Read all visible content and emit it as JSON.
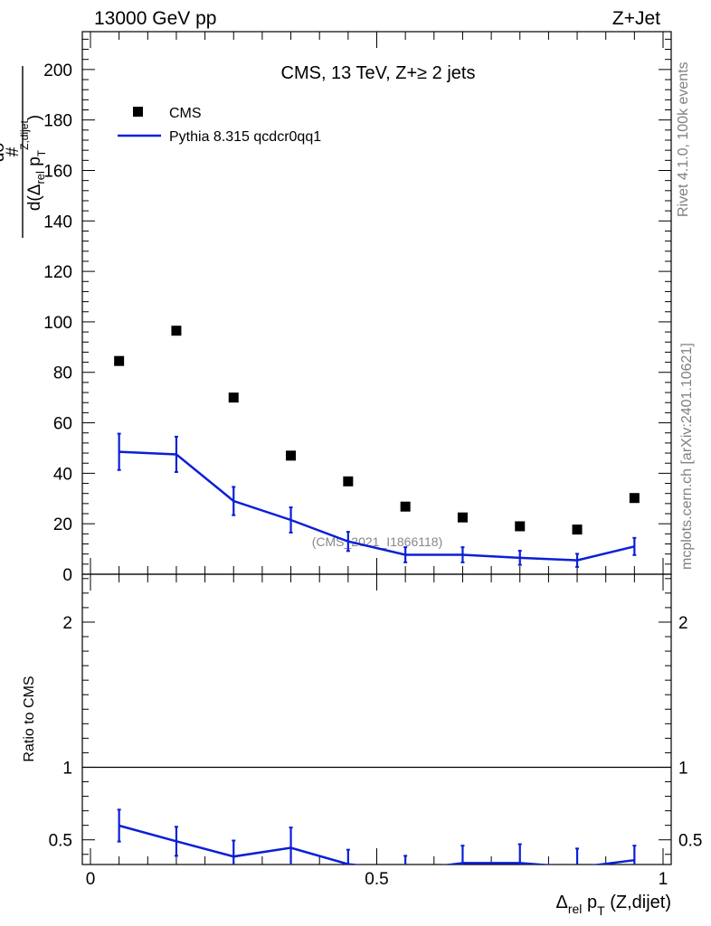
{
  "header": {
    "energy_label": "13000 GeV pp",
    "process_label": "Z+Jet"
  },
  "side_labels": {
    "rivet": "Rivet 4.1.0,  100k events",
    "mcplots": "mcplots.cern.ch [arXiv:2401.10621]"
  },
  "colors": {
    "data": "#000000",
    "mc": "#0b1fd6",
    "watermark": "#888888",
    "side_text": "#808080"
  },
  "chart_data": [
    {
      "type": "scatter+line",
      "title": "CMS, 13 TeV, Z+≥ 2 jets",
      "watermark": "(CMS_2021_I1866118)",
      "ylabel": {
        "hash": "#",
        "numerator": "dσ",
        "den_d": "d(",
        "den_delta": "Δ",
        "den_rel": "rel",
        "den_p": " p",
        "den_t": "T",
        "den_sup": "Z,dijet",
        "den_close": ")"
      },
      "xlim": [
        0,
        1
      ],
      "ylim": [
        0,
        215
      ],
      "yticks": [
        0,
        20,
        40,
        60,
        80,
        100,
        120,
        140,
        160,
        180,
        200
      ],
      "legend": {
        "position": "top-left",
        "entries": [
          "CMS",
          "Pythia 8.315 qcdcr0qq1"
        ]
      },
      "series": [
        {
          "name": "CMS",
          "style": "markers",
          "x": [
            0.05,
            0.15,
            0.25,
            0.35,
            0.45,
            0.55,
            0.65,
            0.75,
            0.85,
            0.95
          ],
          "y": [
            84.5,
            96.5,
            70.0,
            47.0,
            36.8,
            26.8,
            22.5,
            19.0,
            17.7,
            30.2
          ]
        },
        {
          "name": "Pythia 8.315 qcdcr0qq1",
          "style": "line-with-errors",
          "x": [
            0.05,
            0.15,
            0.25,
            0.35,
            0.45,
            0.55,
            0.65,
            0.75,
            0.85,
            0.95
          ],
          "y": [
            48.5,
            47.5,
            29.0,
            21.5,
            13.0,
            7.7,
            7.7,
            6.5,
            5.5,
            11.0
          ],
          "yerr": [
            7.2,
            7.0,
            5.6,
            5.0,
            3.8,
            3.0,
            3.0,
            2.8,
            2.6,
            3.4
          ]
        }
      ]
    },
    {
      "type": "ratio",
      "ylabel": "Ratio to CMS",
      "xlabel": {
        "delta": "Δ",
        "rel": "rel",
        "p": " p",
        "t": "T",
        "rest": " (Z,dijet)"
      },
      "xlim": [
        0,
        1
      ],
      "ylim": [
        0.33,
        2.33
      ],
      "xticks": [
        0,
        0.5,
        1
      ],
      "xtick_labels": [
        "0",
        "0.5",
        "1"
      ],
      "yticks": [
        0.5,
        1,
        2
      ],
      "ytick_labels": [
        "0.5",
        "1",
        "2"
      ],
      "reference": 1,
      "series": [
        {
          "name": "Pythia 8.315 qcdcr0qq1",
          "x": [
            0.05,
            0.15,
            0.25,
            0.35,
            0.45,
            0.55,
            0.65,
            0.75,
            0.85,
            0.95
          ],
          "y": [
            0.598,
            0.49,
            0.385,
            0.445,
            0.332,
            0.29,
            0.34,
            0.34,
            0.31,
            0.36
          ],
          "yerr": [
            0.11,
            0.1,
            0.11,
            0.14,
            0.1,
            0.1,
            0.12,
            0.13,
            0.13,
            0.1
          ]
        }
      ]
    }
  ]
}
